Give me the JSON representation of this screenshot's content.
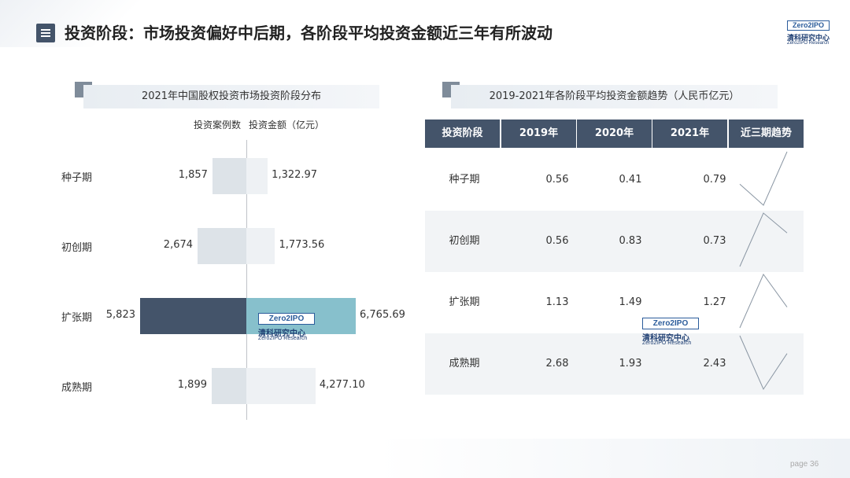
{
  "page_title": "投资阶段：市场投资偏好中后期，各阶段平均投资金额近三年有所波动",
  "logo": {
    "box_text": "Zero2IPO",
    "cn": "清科研究中心",
    "en": "Zero2IPO Research"
  },
  "page_label": "page",
  "page_number": "36",
  "colors": {
    "dark": "#44546a",
    "light_bar": "#dde3e8",
    "highlight": "#87c0cc",
    "shade": "#f2f4f6"
  },
  "chart_data": [
    {
      "type": "bar",
      "title": "2021年中国股权投资市场投资阶段分布",
      "orientation": "horizontal-diverging",
      "categories": [
        "种子期",
        "初创期",
        "扩张期",
        "成熟期"
      ],
      "series": [
        {
          "name": "投资案例数",
          "values": [
            1857,
            2674,
            5823,
            1899
          ],
          "labels": [
            "1,857",
            "2,674",
            "5,823",
            "1,899"
          ]
        },
        {
          "name": "投资金额（亿元）",
          "values": [
            1322.97,
            1773.56,
            6765.69,
            4277.1
          ],
          "labels": [
            "1,322.97",
            "1,773.56",
            "6,765.69",
            "4,277.10"
          ]
        }
      ],
      "highlight_category": "扩张期"
    },
    {
      "type": "table",
      "title": "2019-2021年各阶段平均投资金额趋势（人民币亿元）",
      "columns": [
        "投资阶段",
        "2019年",
        "2020年",
        "2021年",
        "近三期趋势"
      ],
      "rows": [
        {
          "stage": "种子期",
          "v2019": "0.56",
          "v2020": "0.41",
          "v2021": "0.79",
          "trend": [
            0.56,
            0.41,
            0.79
          ]
        },
        {
          "stage": "初创期",
          "v2019": "0.56",
          "v2020": "0.83",
          "v2021": "0.73",
          "trend": [
            0.56,
            0.83,
            0.73
          ]
        },
        {
          "stage": "扩张期",
          "v2019": "1.13",
          "v2020": "1.49",
          "v2021": "1.27",
          "trend": [
            1.13,
            1.49,
            1.27
          ]
        },
        {
          "stage": "成熟期",
          "v2019": "2.68",
          "v2020": "1.93",
          "v2021": "2.43",
          "trend": [
            2.68,
            1.93,
            2.43
          ]
        }
      ]
    }
  ]
}
